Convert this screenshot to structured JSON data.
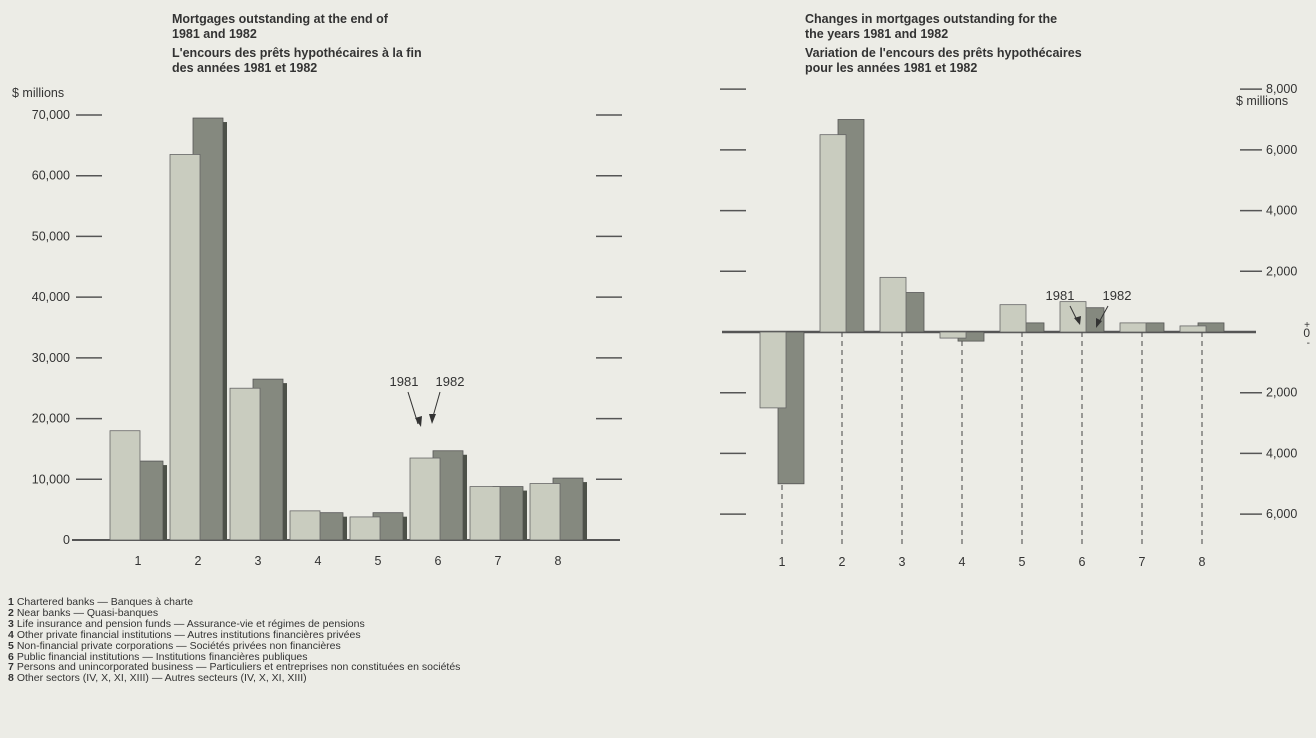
{
  "left_title": {
    "en": "Mortgages outstanding at the end of\n1981 and 1982",
    "fr": "L'encours des prêts hypothécaires à la fin\ndes années 1981 et 1982"
  },
  "right_title": {
    "en": "Changes in mortgages outstanding for the\nthe years 1981 and 1982",
    "fr": "Variation de l'encours des prêts hypothécaires\npour les années 1981 et 1982"
  },
  "left_unit": "$ millions",
  "right_unit": "$ millions",
  "colors": {
    "bar_1981": "#c9ccbf",
    "bar_1982": "#85897f",
    "axis": "#555555"
  },
  "chart_data": [
    {
      "type": "bar",
      "title": "Mortgages outstanding at the end of 1981 and 1982",
      "categories": [
        "1",
        "2",
        "3",
        "4",
        "5",
        "6",
        "7",
        "8"
      ],
      "series": [
        {
          "name": "1981",
          "values": [
            18000,
            63500,
            25000,
            4800,
            3800,
            13500,
            8800,
            9300
          ]
        },
        {
          "name": "1982",
          "values": [
            13000,
            69500,
            26500,
            4500,
            4500,
            14700,
            8800,
            10200
          ]
        }
      ],
      "ylim": [
        0,
        70000
      ],
      "yticks": [
        0,
        10000,
        20000,
        30000,
        40000,
        50000,
        60000,
        70000
      ],
      "ytick_labels": [
        "0",
        "10,000",
        "20,000",
        "30,000",
        "40,000",
        "50,000",
        "60,000",
        "70,000"
      ],
      "ylabel": "$ millions",
      "annotations": [
        "1981",
        "1982"
      ]
    },
    {
      "type": "bar",
      "title": "Changes in mortgages outstanding for the the years 1981 and 1982",
      "categories": [
        "1",
        "2",
        "3",
        "4",
        "5",
        "6",
        "7",
        "8"
      ],
      "series": [
        {
          "name": "1981",
          "values": [
            -2500,
            6500,
            1800,
            -200,
            900,
            1000,
            300,
            200
          ]
        },
        {
          "name": "1982",
          "values": [
            -5000,
            7000,
            1300,
            -300,
            300,
            800,
            300,
            300
          ]
        }
      ],
      "ylim": [
        -6000,
        8000
      ],
      "yticks": [
        -6000,
        -4000,
        -2000,
        0,
        2000,
        4000,
        6000,
        8000
      ],
      "ytick_labels": [
        "6,000",
        "4,000",
        "2,000",
        "0",
        "2,000",
        "4,000",
        "6,000",
        "8,000"
      ],
      "zero_marks": [
        "+",
        "-"
      ],
      "ylabel": "$ millions",
      "annotations": [
        "1981",
        "1982"
      ]
    }
  ],
  "legend": [
    {
      "num": "1",
      "text": "Chartered banks — Banques à charte"
    },
    {
      "num": "2",
      "text": "Near banks — Quasi-banques"
    },
    {
      "num": "3",
      "text": "Life insurance and pension funds — Assurance-vie et régimes de pensions"
    },
    {
      "num": "4",
      "text": "Other private financial institutions — Autres institutions financières privées"
    },
    {
      "num": "5",
      "text": "Non-financial private corporations — Sociétés privées non financières"
    },
    {
      "num": "6",
      "text": "Public financial institutions — Institutions financières publiques"
    },
    {
      "num": "7",
      "text": "Persons and unincorporated business — Particuliers et entreprises non constituées en sociétés"
    },
    {
      "num": "8",
      "text": "Other sectors (IV, X, XI, XIII) — Autres secteurs (IV, X, XI, XIII)"
    }
  ]
}
